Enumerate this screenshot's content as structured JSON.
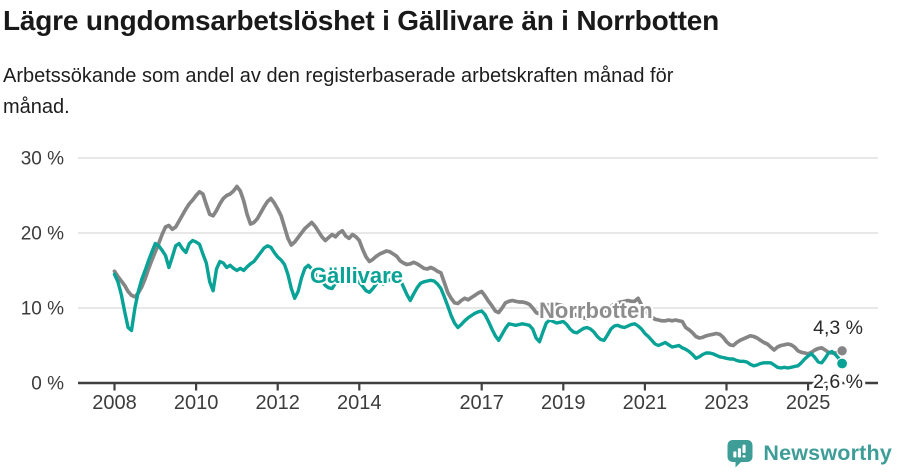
{
  "header": {
    "title": "Lägre ungdomsarbetslöshet i Gällivare än i Norrbotten",
    "subtitle_line1": "Arbetssökande som andel av den registerbaserade arbetskraften månad för",
    "subtitle_line2": "månad."
  },
  "footer": {
    "brand": "Newsworthy",
    "logo_icon": "bar-chart-speech-bubble-icon"
  },
  "colors": {
    "gallivare": "#09a296",
    "norrbotten": "#858585",
    "norrbotten_label": "#8d8d8d",
    "axis": "#3f3f3f",
    "grid": "#d9d9d9",
    "tick_label": "#3c3c3c",
    "end_label": "#2a2a2a",
    "brand": "#3f9d97",
    "title": "#191919"
  },
  "chart_data": {
    "type": "line",
    "frequency": "monthly",
    "x_start": "2008-01",
    "x_end": "2025-11",
    "unit": "%",
    "ylim": [
      0,
      30
    ],
    "grid": "horizontal",
    "legend_position": "inline-labels",
    "ytick_values": [
      30,
      20,
      10,
      0
    ],
    "ytick_labels": [
      "30 %",
      "20 %",
      "10 %",
      "0 %"
    ],
    "xtick_years": [
      2008,
      2010,
      2012,
      2014,
      2017,
      2019,
      2021,
      2023,
      2025
    ],
    "series": [
      {
        "name": "Norrbotten",
        "color": "#858585",
        "label_color": "#8d8d8d",
        "end_value_label": "4,3 %",
        "end_value": 4.3,
        "values": [
          14.9,
          14.2,
          13.6,
          13.0,
          12.2,
          11.7,
          11.5,
          12.0,
          12.8,
          13.9,
          15.2,
          16.4,
          17.5,
          18.6,
          19.8,
          20.8,
          21.0,
          20.5,
          20.8,
          21.6,
          22.4,
          23.2,
          23.9,
          24.4,
          25.0,
          25.5,
          25.2,
          23.8,
          22.5,
          22.3,
          23.0,
          23.9,
          24.6,
          25.0,
          25.2,
          25.6,
          26.2,
          25.6,
          24.3,
          22.5,
          21.2,
          21.4,
          21.9,
          22.7,
          23.5,
          24.2,
          24.6,
          24.0,
          23.2,
          22.3,
          20.8,
          19.3,
          18.4,
          18.8,
          19.4,
          20.0,
          20.6,
          21.0,
          21.4,
          20.9,
          20.2,
          19.5,
          19.0,
          19.4,
          19.8,
          19.5,
          20.0,
          20.3,
          19.6,
          19.3,
          19.8,
          19.5,
          19.0,
          17.8,
          16.8,
          16.2,
          16.5,
          16.9,
          17.2,
          17.4,
          17.6,
          17.5,
          17.2,
          16.9,
          16.3,
          16.0,
          15.8,
          15.9,
          16.1,
          15.9,
          15.6,
          15.3,
          15.2,
          15.4,
          15.2,
          14.9,
          14.7,
          13.4,
          12.1,
          11.3,
          10.7,
          10.6,
          11.0,
          11.3,
          11.1,
          11.4,
          11.7,
          12.0,
          12.2,
          11.6,
          10.9,
          10.3,
          9.6,
          9.4,
          10.0,
          10.7,
          10.9,
          11.0,
          10.9,
          10.8,
          10.8,
          10.7,
          10.5,
          10.0,
          9.4,
          9.2,
          9.7,
          10.3,
          10.5,
          10.4,
          10.5,
          10.4,
          10.3,
          10.0,
          9.6,
          9.2,
          9.0,
          8.8,
          8.7,
          8.6,
          8.7,
          8.9,
          9.2,
          9.5,
          9.6,
          9.8,
          10.2,
          10.5,
          10.7,
          10.8,
          10.9,
          11.0,
          10.9,
          10.9,
          11.3,
          10.4,
          9.7,
          9.2,
          8.8,
          8.5,
          8.4,
          8.3,
          8.3,
          8.4,
          8.3,
          8.4,
          8.3,
          8.2,
          7.4,
          7.1,
          6.7,
          6.2,
          6.0,
          6.1,
          6.3,
          6.4,
          6.5,
          6.6,
          6.5,
          6.1,
          5.5,
          5.1,
          5.0,
          5.4,
          5.7,
          5.9,
          6.1,
          6.3,
          6.2,
          6.0,
          5.7,
          5.4,
          5.2,
          4.8,
          4.4,
          4.8,
          5.0,
          5.1,
          5.2,
          5.1,
          4.8,
          4.3,
          4.1,
          4.0,
          3.9,
          4.1,
          4.4,
          4.6,
          4.7,
          4.4,
          4.1,
          4.0,
          4.0,
          4.1,
          4.3
        ]
      },
      {
        "name": "Gällivare",
        "color": "#09a296",
        "label_color": "#09a296",
        "end_value_label": "2,6 %",
        "end_value": 2.6,
        "values": [
          14.5,
          13.5,
          11.8,
          9.5,
          7.4,
          7.0,
          10.0,
          12.2,
          13.8,
          15.0,
          16.3,
          17.5,
          18.6,
          18.3,
          17.7,
          17.0,
          15.4,
          16.8,
          18.3,
          18.6,
          17.9,
          17.4,
          18.6,
          19.0,
          18.8,
          18.5,
          17.2,
          16.0,
          13.5,
          12.3,
          15.2,
          16.2,
          16.0,
          15.4,
          15.7,
          15.3,
          15.0,
          15.3,
          15.0,
          15.5,
          15.9,
          16.2,
          16.8,
          17.4,
          18.0,
          18.3,
          18.1,
          17.4,
          16.8,
          16.4,
          15.8,
          14.5,
          12.6,
          11.3,
          12.2,
          14.0,
          15.3,
          15.7,
          15.2,
          14.6,
          14.2,
          13.6,
          13.0,
          12.7,
          12.6,
          13.3,
          14.0,
          14.3,
          14.2,
          14.0,
          13.9,
          13.8,
          13.4,
          12.9,
          12.3,
          12.1,
          12.6,
          13.2,
          13.6,
          13.2,
          13.5,
          13.8,
          14.0,
          14.1,
          13.8,
          12.8,
          11.8,
          11.0,
          11.9,
          12.7,
          13.3,
          13.5,
          13.6,
          13.7,
          13.6,
          13.2,
          12.6,
          11.5,
          10.3,
          9.0,
          8.0,
          7.4,
          7.8,
          8.3,
          8.7,
          9.0,
          9.3,
          9.5,
          9.6,
          9.1,
          8.2,
          7.2,
          6.3,
          5.7,
          6.5,
          7.3,
          7.9,
          7.8,
          7.7,
          7.8,
          7.9,
          7.8,
          7.7,
          7.2,
          6.0,
          5.5,
          6.8,
          8.0,
          8.4,
          8.2,
          8.0,
          8.1,
          8.2,
          7.8,
          7.2,
          6.8,
          6.7,
          7.0,
          7.3,
          7.4,
          7.2,
          6.8,
          6.2,
          5.8,
          5.7,
          6.4,
          7.2,
          7.6,
          7.7,
          7.5,
          7.4,
          7.6,
          7.8,
          7.9,
          7.6,
          7.2,
          6.6,
          6.2,
          5.7,
          5.2,
          5.0,
          5.2,
          5.4,
          5.1,
          4.8,
          4.9,
          5.0,
          4.7,
          4.5,
          4.2,
          3.8,
          3.3,
          3.5,
          3.8,
          4.0,
          4.0,
          3.9,
          3.7,
          3.5,
          3.4,
          3.3,
          3.2,
          3.2,
          3.0,
          2.9,
          2.9,
          2.8,
          2.5,
          2.3,
          2.4,
          2.6,
          2.7,
          2.7,
          2.7,
          2.4,
          2.1,
          2.0,
          2.1,
          2.0,
          2.1,
          2.2,
          2.3,
          2.7,
          3.2,
          3.6,
          3.9,
          3.4,
          2.8,
          2.7,
          3.3,
          4.0,
          4.2,
          3.8,
          3.3,
          2.6
        ]
      }
    ]
  }
}
